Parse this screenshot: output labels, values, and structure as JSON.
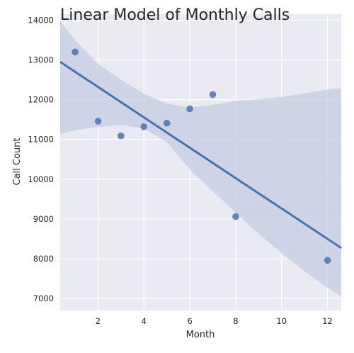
{
  "chart_data": {
    "type": "scatter",
    "title": "Linear Model of Monthly Calls",
    "xlabel": "Month",
    "ylabel": "Call Count",
    "xlim": [
      0.35,
      12.6
    ],
    "ylim": [
      6700,
      14150
    ],
    "xticks": [
      2,
      4,
      6,
      8,
      10,
      12
    ],
    "yticks": [
      7000,
      8000,
      9000,
      10000,
      11000,
      12000,
      13000,
      14000
    ],
    "grid": true,
    "points": [
      {
        "x": 1,
        "y": 13200
      },
      {
        "x": 2,
        "y": 11460
      },
      {
        "x": 3,
        "y": 11090
      },
      {
        "x": 4,
        "y": 11320
      },
      {
        "x": 5,
        "y": 11410
      },
      {
        "x": 6,
        "y": 11770
      },
      {
        "x": 7,
        "y": 12130
      },
      {
        "x": 8,
        "y": 9060
      },
      {
        "x": 12,
        "y": 7960
      }
    ],
    "regression": {
      "line": [
        [
          0.35,
          12950
        ],
        [
          12.6,
          8270
        ]
      ]
    },
    "confidence_band": {
      "x": [
        0.35,
        1,
        2,
        3,
        4,
        5,
        6,
        7,
        8,
        9,
        10,
        11,
        12,
        12.6
      ],
      "upper": [
        13970,
        13500,
        12900,
        12500,
        12150,
        11900,
        11800,
        11870,
        11970,
        12010,
        12070,
        12160,
        12250,
        12290
      ],
      "lower": [
        11140,
        11230,
        11310,
        11360,
        11280,
        10930,
        10240,
        9700,
        9160,
        8630,
        8140,
        7690,
        7270,
        7050
      ]
    },
    "colors": {
      "background": "#eaeaf2",
      "grid": "#ffffff",
      "points": "#4c72b0",
      "line": "#4c72b0",
      "band": "#c3cce2"
    }
  }
}
